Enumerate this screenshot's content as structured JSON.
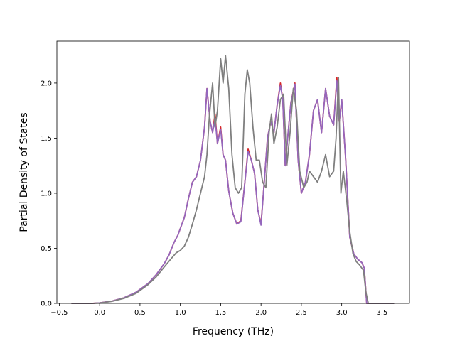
{
  "chart_data": {
    "type": "line",
    "title": "",
    "xlabel": "Frequency (THz)",
    "ylabel": "Partial Density of States",
    "xlim": [
      -0.53,
      3.84
    ],
    "ylim": [
      0.0,
      2.38
    ],
    "xticks": [
      -0.5,
      0.0,
      0.5,
      1.0,
      1.5,
      2.0,
      2.5,
      3.0,
      3.5
    ],
    "xtick_labels": [
      "−0.5",
      "0.0",
      "0.5",
      "1.0",
      "1.5",
      "2.0",
      "2.5",
      "3.0",
      "3.5"
    ],
    "yticks": [
      0.0,
      0.5,
      1.0,
      1.5,
      2.0
    ],
    "ytick_labels": [
      "0.0",
      "0.5",
      "1.0",
      "1.5",
      "2.0"
    ],
    "grid": false,
    "legend": "none",
    "series": [
      {
        "color": "#d62728",
        "x": [
          -0.35,
          -0.1,
          0.0,
          0.15,
          0.3,
          0.45,
          0.6,
          0.7,
          0.8,
          0.86,
          0.92,
          0.97,
          1.0,
          1.05,
          1.1,
          1.15,
          1.2,
          1.25,
          1.3,
          1.33,
          1.37,
          1.4,
          1.43,
          1.46,
          1.5,
          1.53,
          1.56,
          1.6,
          1.65,
          1.7,
          1.75,
          1.8,
          1.84,
          1.88,
          1.92,
          1.96,
          2.0,
          2.04,
          2.08,
          2.12,
          2.16,
          2.2,
          2.24,
          2.27,
          2.3,
          2.33,
          2.37,
          2.42,
          2.46,
          2.5,
          2.55,
          2.6,
          2.65,
          2.7,
          2.75,
          2.8,
          2.85,
          2.9,
          2.94,
          2.97,
          3.0,
          3.05,
          3.1,
          3.15,
          3.2,
          3.25,
          3.28,
          3.31,
          3.35,
          3.65
        ],
        "y": [
          0.0,
          0.0,
          0.005,
          0.02,
          0.05,
          0.1,
          0.18,
          0.26,
          0.36,
          0.44,
          0.55,
          0.62,
          0.68,
          0.78,
          0.95,
          1.1,
          1.15,
          1.3,
          1.6,
          1.95,
          1.65,
          1.55,
          1.72,
          1.45,
          1.6,
          1.35,
          1.3,
          1.02,
          0.82,
          0.72,
          0.75,
          1.1,
          1.4,
          1.3,
          1.18,
          0.85,
          0.72,
          1.1,
          1.5,
          1.65,
          1.55,
          1.8,
          2.0,
          1.85,
          1.25,
          1.5,
          1.82,
          2.0,
          1.3,
          1.0,
          1.1,
          1.35,
          1.75,
          1.85,
          1.55,
          1.95,
          1.7,
          1.62,
          2.05,
          1.65,
          1.85,
          1.3,
          0.6,
          0.45,
          0.4,
          0.37,
          0.32,
          0.0,
          0.0,
          0.0
        ]
      },
      {
        "color": "#9467bd",
        "x": [
          -0.35,
          -0.1,
          0.0,
          0.15,
          0.3,
          0.45,
          0.6,
          0.7,
          0.8,
          0.86,
          0.92,
          0.97,
          1.0,
          1.05,
          1.1,
          1.15,
          1.2,
          1.25,
          1.3,
          1.33,
          1.37,
          1.4,
          1.43,
          1.46,
          1.5,
          1.53,
          1.56,
          1.6,
          1.65,
          1.7,
          1.75,
          1.8,
          1.84,
          1.88,
          1.92,
          1.96,
          2.0,
          2.04,
          2.08,
          2.12,
          2.16,
          2.2,
          2.24,
          2.27,
          2.3,
          2.33,
          2.37,
          2.42,
          2.46,
          2.5,
          2.55,
          2.6,
          2.65,
          2.7,
          2.75,
          2.8,
          2.85,
          2.9,
          2.94,
          2.97,
          3.0,
          3.05,
          3.1,
          3.15,
          3.2,
          3.25,
          3.28,
          3.31,
          3.35,
          3.65
        ],
        "y": [
          0.0,
          0.0,
          0.005,
          0.02,
          0.05,
          0.1,
          0.18,
          0.26,
          0.36,
          0.44,
          0.55,
          0.62,
          0.68,
          0.78,
          0.95,
          1.1,
          1.15,
          1.3,
          1.6,
          1.95,
          1.65,
          1.55,
          1.68,
          1.45,
          1.58,
          1.35,
          1.3,
          1.02,
          0.82,
          0.72,
          0.74,
          1.1,
          1.38,
          1.3,
          1.18,
          0.85,
          0.71,
          1.1,
          1.5,
          1.65,
          1.55,
          1.8,
          1.98,
          1.85,
          1.25,
          1.5,
          1.82,
          1.99,
          1.3,
          1.0,
          1.1,
          1.35,
          1.75,
          1.85,
          1.55,
          1.95,
          1.7,
          1.62,
          2.02,
          1.65,
          1.85,
          1.3,
          0.6,
          0.45,
          0.4,
          0.37,
          0.32,
          0.0,
          0.0,
          0.0
        ]
      },
      {
        "color": "#7f7f7f",
        "x": [
          -0.35,
          -0.1,
          0.0,
          0.15,
          0.3,
          0.45,
          0.6,
          0.7,
          0.8,
          0.88,
          0.95,
          1.0,
          1.05,
          1.1,
          1.15,
          1.2,
          1.25,
          1.3,
          1.33,
          1.36,
          1.4,
          1.43,
          1.46,
          1.5,
          1.53,
          1.56,
          1.6,
          1.64,
          1.68,
          1.72,
          1.76,
          1.8,
          1.83,
          1.86,
          1.9,
          1.94,
          1.98,
          2.02,
          2.06,
          2.1,
          2.13,
          2.16,
          2.2,
          2.24,
          2.28,
          2.32,
          2.36,
          2.4,
          2.44,
          2.48,
          2.53,
          2.57,
          2.6,
          2.65,
          2.7,
          2.75,
          2.8,
          2.85,
          2.9,
          2.93,
          2.96,
          2.99,
          3.02,
          3.06,
          3.1,
          3.14,
          3.18,
          3.22,
          3.27,
          3.3,
          3.33,
          3.65
        ],
        "y": [
          0.0,
          0.0,
          0.003,
          0.018,
          0.045,
          0.09,
          0.17,
          0.24,
          0.33,
          0.4,
          0.46,
          0.48,
          0.52,
          0.6,
          0.72,
          0.85,
          1.0,
          1.15,
          1.35,
          1.7,
          2.0,
          1.6,
          1.75,
          2.22,
          2.0,
          2.25,
          1.95,
          1.35,
          1.05,
          1.0,
          1.05,
          1.9,
          2.12,
          2.0,
          1.6,
          1.3,
          1.3,
          1.1,
          1.05,
          1.55,
          1.72,
          1.45,
          1.6,
          1.85,
          1.9,
          1.25,
          1.55,
          1.95,
          1.75,
          1.2,
          1.05,
          1.1,
          1.2,
          1.15,
          1.1,
          1.2,
          1.35,
          1.15,
          1.2,
          1.5,
          2.05,
          1.0,
          1.2,
          0.95,
          0.65,
          0.45,
          0.38,
          0.35,
          0.3,
          0.1,
          0.0,
          0.0
        ]
      }
    ]
  }
}
